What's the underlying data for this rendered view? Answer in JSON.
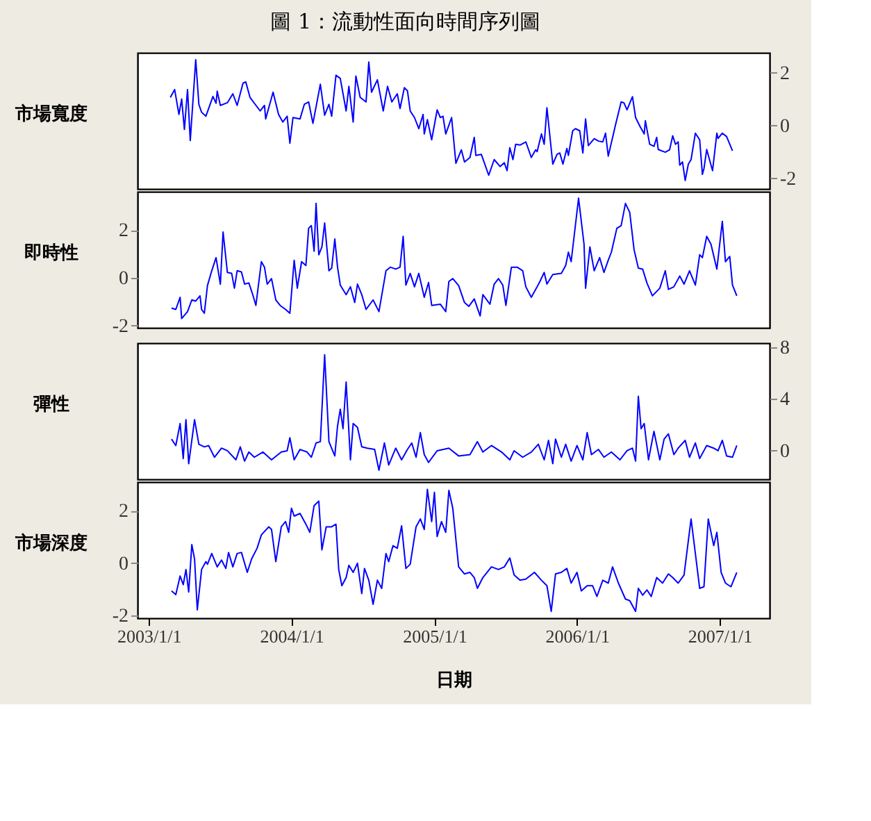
{
  "chart_data": [
    {
      "type": "line",
      "title": "圖 1：流動性面向時間序列圖",
      "ylabel": "市場寬度",
      "xlim": [
        "2002-12-03",
        "2007-05-09"
      ],
      "y2lim": [
        -2.4,
        2.75
      ],
      "y2ticks": [
        -2,
        0,
        2
      ],
      "tick_labels": "y",
      "series": [
        {
          "axis": "y2",
          "color": "#0000ff",
          "x": [
            "2003-02-25",
            "2003-03-08",
            "2003-03-19",
            "2003-03-26",
            "2003-04-02",
            "2003-04-10",
            "2003-04-17",
            "2003-05-01",
            "2003-05-09",
            "2003-05-16",
            "2003-05-27",
            "2003-06-14",
            "2003-06-22",
            "2003-06-25",
            "2003-07-03",
            "2003-07-21",
            "2003-08-04",
            "2003-08-15",
            "2003-08-30",
            "2003-09-06",
            "2003-09-17",
            "2003-10-13",
            "2003-10-24",
            "2003-10-27",
            "2003-11-15",
            "2003-11-29",
            "2003-12-10",
            "2003-12-21",
            "2003-12-28",
            "2004-01-05",
            "2004-01-23",
            "2004-02-03",
            "2004-02-14",
            "2004-02-25",
            "2004-03-15",
            "2004-03-26",
            "2004-04-06",
            "2004-04-13",
            "2004-04-24",
            "2004-05-05",
            "2004-05-20",
            "2004-05-27",
            "2004-06-07",
            "2004-06-14",
            "2004-06-25",
            "2004-07-10",
            "2004-07-17",
            "2004-07-24",
            "2004-08-08",
            "2004-08-23",
            "2004-09-03",
            "2004-09-14",
            "2004-09-28",
            "2004-10-05",
            "2004-10-16",
            "2004-10-24",
            "2004-10-31",
            "2004-11-11",
            "2004-11-22",
            "2004-12-03",
            "2004-12-06",
            "2004-12-14",
            "2004-12-25",
            "2005-01-08",
            "2005-01-16",
            "2005-01-23",
            "2005-01-30",
            "2005-02-14",
            "2005-02-25",
            "2005-03-11",
            "2005-03-19",
            "2005-04-02",
            "2005-04-13",
            "2005-04-17",
            "2005-05-01",
            "2005-05-20",
            "2005-06-03",
            "2005-06-18",
            "2005-06-29",
            "2005-07-06",
            "2005-07-13",
            "2005-07-21",
            "2005-07-28",
            "2005-08-08",
            "2005-08-23",
            "2005-09-06",
            "2005-09-17",
            "2005-09-21",
            "2005-10-02",
            "2005-10-09",
            "2005-10-16",
            "2005-10-31",
            "2005-11-11",
            "2005-11-18",
            "2005-11-26",
            "2005-12-06",
            "2005-12-10",
            "2005-12-21",
            "2005-12-28",
            "2006-01-08",
            "2006-01-16",
            "2006-01-23",
            "2006-01-30",
            "2006-02-14",
            "2006-02-25",
            "2006-03-08",
            "2006-03-15",
            "2006-03-22",
            "2006-04-10",
            "2006-04-24",
            "2006-05-01",
            "2006-05-09",
            "2006-05-23",
            "2006-05-31",
            "2006-06-11",
            "2006-06-22",
            "2006-06-25",
            "2006-07-06",
            "2006-07-17",
            "2006-07-24",
            "2006-07-28",
            "2006-08-15",
            "2006-08-26",
            "2006-09-03",
            "2006-09-10",
            "2006-09-17",
            "2006-09-21",
            "2006-09-28",
            "2006-10-05",
            "2006-10-13",
            "2006-10-20",
            "2006-10-31",
            "2006-11-11",
            "2006-11-18",
            "2006-11-22",
            "2006-11-29",
            "2006-12-14",
            "2006-12-25",
            "2006-12-28",
            "2007-01-08",
            "2007-01-19",
            "2007-02-03"
          ],
          "values": [
            1.06,
            1.36,
            0.42,
            1.0,
            -0.15,
            1.36,
            -0.57,
            2.49,
            0.8,
            0.5,
            0.35,
            1.1,
            0.84,
            1.3,
            0.76,
            0.86,
            1.2,
            0.76,
            1.6,
            1.65,
            1.06,
            0.55,
            0.76,
            0.25,
            1.26,
            0.42,
            0.13,
            0.35,
            -0.67,
            0.3,
            0.25,
            0.8,
            0.89,
            0.08,
            1.56,
            0.39,
            0.8,
            0.35,
            1.9,
            1.78,
            0.55,
            1.48,
            0.13,
            1.87,
            1.06,
            0.89,
            2.4,
            1.26,
            1.73,
            0.55,
            1.48,
            0.89,
            1.2,
            0.64,
            1.43,
            1.31,
            0.55,
            0.3,
            -0.12,
            0.42,
            -0.32,
            0.22,
            -0.54,
            0.59,
            0.3,
            0.35,
            -0.32,
            0.3,
            -1.43,
            -0.92,
            -1.38,
            -1.21,
            -0.45,
            -1.13,
            -1.09,
            -1.88,
            -1.29,
            -1.55,
            -1.41,
            -1.71,
            -0.84,
            -1.29,
            -0.71,
            -0.74,
            -0.62,
            -1.21,
            -0.92,
            -0.99,
            -0.32,
            -0.71,
            0.67,
            -1.46,
            -1.09,
            -1.04,
            -1.46,
            -0.87,
            -1.13,
            -0.2,
            -0.12,
            -0.2,
            -1.04,
            0.25,
            -0.76,
            -0.5,
            -0.59,
            -0.62,
            -0.29,
            -1.16,
            0.05,
            0.89,
            0.86,
            0.59,
            1.09,
            0.3,
            -0.03,
            -0.32,
            0.18,
            -0.71,
            -0.79,
            -0.45,
            -0.91,
            -1.01,
            -0.92,
            -0.39,
            -0.71,
            -0.62,
            -1.5,
            -1.38,
            -2.08,
            -1.46,
            -1.29,
            -0.29,
            -0.54,
            -1.85,
            -1.63,
            -0.91,
            -1.71,
            -0.29,
            -0.49,
            -0.29,
            -0.42,
            -0.96
          ]
        }
      ]
    },
    {
      "type": "line",
      "ylabel": "即時性",
      "xlim": [
        "2002-12-03",
        "2007-05-09"
      ],
      "ylim": [
        -2.1,
        3.6
      ],
      "yticks": [
        -2,
        0,
        2
      ],
      "tick_labels": "y",
      "series": [
        {
          "color": "#0000ff",
          "x": [
            "2003-02-28",
            "2003-03-11",
            "2003-03-22",
            "2003-03-26",
            "2003-04-10",
            "2003-04-21",
            "2003-05-01",
            "2003-05-12",
            "2003-05-16",
            "2003-05-23",
            "2003-05-31",
            "2003-06-11",
            "2003-06-22",
            "2003-07-03",
            "2003-07-10",
            "2003-07-21",
            "2003-08-01",
            "2003-08-08",
            "2003-08-15",
            "2003-08-26",
            "2003-09-03",
            "2003-09-14",
            "2003-09-24",
            "2003-10-02",
            "2003-10-16",
            "2003-10-24",
            "2003-10-31",
            "2003-11-11",
            "2003-11-22",
            "2003-12-03",
            "2003-12-17",
            "2003-12-28",
            "2004-01-08",
            "2004-01-16",
            "2004-01-27",
            "2004-02-07",
            "2004-02-14",
            "2004-02-21",
            "2004-02-28",
            "2004-03-04",
            "2004-03-11",
            "2004-03-19",
            "2004-03-26",
            "2004-04-06",
            "2004-04-13",
            "2004-04-21",
            "2004-04-28",
            "2004-05-05",
            "2004-05-20",
            "2004-05-31",
            "2004-06-11",
            "2004-06-18",
            "2004-06-29",
            "2004-07-10",
            "2004-07-28",
            "2004-08-12",
            "2004-08-30",
            "2004-09-10",
            "2004-09-24",
            "2004-10-05",
            "2004-10-13",
            "2004-10-20",
            "2004-10-31",
            "2004-11-11",
            "2004-11-22",
            "2004-12-06",
            "2004-12-17",
            "2004-12-25",
            "2005-01-16",
            "2005-01-30",
            "2005-02-07",
            "2005-02-17",
            "2005-03-04",
            "2005-03-19",
            "2005-03-30",
            "2005-04-13",
            "2005-04-28",
            "2005-05-05",
            "2005-05-23",
            "2005-06-03",
            "2005-06-14",
            "2005-06-25",
            "2005-07-03",
            "2005-07-17",
            "2005-08-01",
            "2005-08-15",
            "2005-08-23",
            "2005-09-06",
            "2005-09-21",
            "2005-09-28",
            "2005-10-09",
            "2005-10-16",
            "2005-10-31",
            "2005-11-22",
            "2005-12-03",
            "2005-12-10",
            "2005-12-17",
            "2006-01-05",
            "2006-01-19",
            "2006-01-23",
            "2006-02-03",
            "2006-02-14",
            "2006-02-28",
            "2006-03-11",
            "2006-03-22",
            "2006-03-30",
            "2006-04-13",
            "2006-04-24",
            "2006-05-05",
            "2006-05-16",
            "2006-05-27",
            "2006-06-07",
            "2006-06-18",
            "2006-06-29",
            "2006-07-13",
            "2006-08-01",
            "2006-08-15",
            "2006-08-23",
            "2006-09-06",
            "2006-09-21",
            "2006-10-02",
            "2006-10-16",
            "2006-10-31",
            "2006-11-11",
            "2006-11-18",
            "2006-11-29",
            "2006-12-10",
            "2006-12-25",
            "2007-01-08",
            "2007-01-16",
            "2007-01-27",
            "2007-02-03",
            "2007-02-14"
          ],
          "values": [
            -1.27,
            -1.33,
            -0.82,
            -1.71,
            -1.42,
            -0.93,
            -0.98,
            -0.76,
            -1.33,
            -1.49,
            -0.33,
            0.29,
            0.84,
            -0.27,
            1.91,
            0.22,
            0.18,
            -0.44,
            0.29,
            0.24,
            -0.27,
            -0.22,
            -0.71,
            -1.16,
            0.67,
            0.44,
            -0.27,
            -0.04,
            -0.93,
            -1.16,
            -1.33,
            -1.49,
            0.73,
            -0.44,
            0.67,
            0.51,
            2.07,
            2.18,
            1.11,
            3.11,
            0.96,
            1.29,
            2.29,
            0.29,
            0.4,
            1.62,
            0.44,
            -0.31,
            -0.71,
            -0.38,
            -1.04,
            -0.27,
            -0.71,
            -1.33,
            -0.93,
            -1.42,
            0.29,
            0.44,
            0.36,
            0.44,
            1.73,
            -0.31,
            0.18,
            -0.38,
            0.18,
            -0.82,
            -0.2,
            -1.16,
            -1.11,
            -1.42,
            -0.16,
            -0.04,
            -0.33,
            -1.04,
            -1.2,
            -0.89,
            -1.6,
            -0.71,
            -1.11,
            -0.27,
            -0.04,
            -0.31,
            -1.16,
            0.44,
            0.44,
            0.29,
            -0.38,
            -0.82,
            -0.38,
            -0.16,
            0.22,
            -0.27,
            0.13,
            0.18,
            0.51,
            1.07,
            0.67,
            3.33,
            1.4,
            -0.44,
            1.29,
            0.29,
            0.84,
            0.22,
            0.73,
            1.07,
            2.07,
            2.18,
            3.11,
            2.73,
            1.18,
            0.4,
            0.36,
            -0.22,
            -0.76,
            -0.44,
            0.29,
            -0.49,
            -0.38,
            0.07,
            -0.27,
            0.29,
            -0.31,
            0.96,
            0.84,
            1.73,
            1.4,
            0.36,
            2.36,
            0.67,
            0.89,
            -0.31,
            -0.76
          ]
        }
      ]
    },
    {
      "type": "line",
      "ylabel": "彈性",
      "xlim": [
        "2002-12-03",
        "2007-05-09"
      ],
      "y2lim": [
        -2.2,
        8.3
      ],
      "y2ticks": [
        0,
        4,
        8
      ],
      "tick_labels": "y",
      "series": [
        {
          "axis": "y2",
          "color": "#0000ff",
          "x": [
            "2003-02-28",
            "2003-03-11",
            "2003-03-22",
            "2003-03-30",
            "2003-04-06",
            "2003-04-13",
            "2003-04-28",
            "2003-05-09",
            "2003-05-23",
            "2003-06-03",
            "2003-06-18",
            "2003-07-06",
            "2003-07-21",
            "2003-08-12",
            "2003-08-23",
            "2003-09-03",
            "2003-09-14",
            "2003-09-28",
            "2003-10-20",
            "2003-11-11",
            "2003-12-06",
            "2003-12-21",
            "2003-12-28",
            "2004-01-08",
            "2004-01-23",
            "2004-02-10",
            "2004-02-21",
            "2004-03-04",
            "2004-03-15",
            "2004-03-26",
            "2004-04-06",
            "2004-04-21",
            "2004-04-28",
            "2004-05-05",
            "2004-05-12",
            "2004-05-20",
            "2004-05-31",
            "2004-06-07",
            "2004-06-18",
            "2004-06-29",
            "2004-07-13",
            "2004-08-01",
            "2004-08-12",
            "2004-08-26",
            "2004-09-06",
            "2004-09-24",
            "2004-10-09",
            "2004-10-24",
            "2004-11-04",
            "2004-11-15",
            "2004-11-26",
            "2004-12-06",
            "2004-12-17",
            "2005-01-08",
            "2005-02-07",
            "2005-03-04",
            "2005-04-02",
            "2005-04-21",
            "2005-05-05",
            "2005-05-27",
            "2005-06-22",
            "2005-07-13",
            "2005-07-24",
            "2005-08-15",
            "2005-09-06",
            "2005-09-24",
            "2005-10-09",
            "2005-10-20",
            "2005-10-31",
            "2005-11-07",
            "2005-11-22",
            "2005-12-03",
            "2005-12-17",
            "2006-01-01",
            "2006-01-16",
            "2006-01-27",
            "2006-02-07",
            "2006-02-25",
            "2006-03-11",
            "2006-03-30",
            "2006-04-21",
            "2006-05-09",
            "2006-05-23",
            "2006-05-31",
            "2006-06-07",
            "2006-06-14",
            "2006-06-22",
            "2006-07-03",
            "2006-07-17",
            "2006-08-01",
            "2006-08-12",
            "2006-08-23",
            "2006-09-06",
            "2006-09-17",
            "2006-10-05",
            "2006-10-16",
            "2006-10-31",
            "2006-11-11",
            "2006-11-29",
            "2006-12-17",
            "2006-12-28",
            "2007-01-08",
            "2007-01-19",
            "2007-02-03",
            "2007-02-14"
          ],
          "values": [
            0.9,
            0.4,
            2.1,
            -0.6,
            2.4,
            -1.0,
            2.4,
            0.5,
            0.3,
            0.4,
            -0.5,
            0.2,
            0.0,
            -0.7,
            0.3,
            -0.8,
            -0.1,
            -0.5,
            -0.1,
            -0.7,
            -0.1,
            0.0,
            1.0,
            -0.7,
            0.1,
            -0.1,
            -0.5,
            0.6,
            0.7,
            7.4,
            0.7,
            -0.4,
            1.9,
            3.2,
            1.7,
            5.3,
            -0.7,
            2.1,
            1.8,
            0.3,
            0.2,
            0.1,
            -1.5,
            0.6,
            -1.1,
            0.2,
            -0.7,
            0.1,
            0.6,
            -0.5,
            1.4,
            -0.3,
            -0.9,
            0.0,
            0.2,
            -0.4,
            -0.3,
            0.7,
            -0.1,
            0.4,
            -0.1,
            -0.7,
            0.0,
            -0.5,
            -0.1,
            0.5,
            -0.7,
            0.8,
            -1.0,
            0.9,
            -0.5,
            0.5,
            -0.8,
            0.4,
            -0.7,
            1.4,
            -0.3,
            0.1,
            -0.5,
            -0.1,
            -0.7,
            0.0,
            0.2,
            -0.8,
            4.2,
            1.7,
            2.1,
            -0.7,
            1.5,
            -0.7,
            0.9,
            1.3,
            -0.3,
            0.2,
            0.8,
            -0.5,
            0.6,
            -0.6,
            0.4,
            0.2,
            0.0,
            0.8,
            -0.4,
            -0.5,
            0.4
          ]
        }
      ]
    },
    {
      "type": "line",
      "ylabel": "市場深度",
      "xlabel": "日期",
      "xlim": [
        "2002-12-03",
        "2007-05-09"
      ],
      "ylim": [
        -2.1,
        3.1
      ],
      "yticks": [
        -2,
        0,
        2
      ],
      "xticks": [
        {
          "value": "2003-01-01",
          "label": "2003/1/1"
        },
        {
          "value": "2004-01-01",
          "label": "2004/1/1"
        },
        {
          "value": "2005-01-01",
          "label": "2005/1/1"
        },
        {
          "value": "2006-01-01",
          "label": "2006/1/1"
        },
        {
          "value": "2007-01-01",
          "label": "2007/1/1"
        }
      ],
      "series": [
        {
          "color": "#0000ff",
          "x": [
            "2003-02-28",
            "2003-03-11",
            "2003-03-22",
            "2003-03-30",
            "2003-04-06",
            "2003-04-13",
            "2003-04-21",
            "2003-04-28",
            "2003-05-05",
            "2003-05-16",
            "2003-05-27",
            "2003-05-31",
            "2003-06-11",
            "2003-06-25",
            "2003-07-06",
            "2003-07-17",
            "2003-07-24",
            "2003-08-04",
            "2003-08-15",
            "2003-08-26",
            "2003-09-10",
            "2003-09-21",
            "2003-10-05",
            "2003-10-16",
            "2003-11-04",
            "2003-11-11",
            "2003-11-22",
            "2003-12-06",
            "2003-12-17",
            "2003-12-25",
            "2004-01-01",
            "2004-01-08",
            "2004-01-23",
            "2004-02-07",
            "2004-02-17",
            "2004-02-28",
            "2004-03-11",
            "2004-03-19",
            "2004-03-30",
            "2004-04-13",
            "2004-04-24",
            "2004-05-01",
            "2004-05-09",
            "2004-05-20",
            "2004-05-27",
            "2004-06-07",
            "2004-06-18",
            "2004-06-29",
            "2004-07-06",
            "2004-07-17",
            "2004-07-28",
            "2004-08-08",
            "2004-08-19",
            "2004-08-30",
            "2004-09-06",
            "2004-09-17",
            "2004-09-28",
            "2004-10-09",
            "2004-10-20",
            "2004-10-31",
            "2004-11-15",
            "2004-11-26",
            "2004-12-06",
            "2004-12-14",
            "2004-12-25",
            "2005-01-01",
            "2005-01-08",
            "2005-01-19",
            "2005-01-30",
            "2005-02-07",
            "2005-02-17",
            "2005-03-04",
            "2005-03-19",
            "2005-04-02",
            "2005-04-13",
            "2005-04-21",
            "2005-05-05",
            "2005-05-27",
            "2005-06-14",
            "2005-06-29",
            "2005-07-13",
            "2005-07-24",
            "2005-08-08",
            "2005-08-23",
            "2005-09-14",
            "2005-10-02",
            "2005-10-16",
            "2005-10-27",
            "2005-11-07",
            "2005-11-22",
            "2005-12-06",
            "2005-12-17",
            "2006-01-01",
            "2006-01-12",
            "2006-01-27",
            "2006-02-10",
            "2006-02-21",
            "2006-03-08",
            "2006-03-22",
            "2006-04-02",
            "2006-04-17",
            "2006-05-05",
            "2006-05-16",
            "2006-05-31",
            "2006-06-07",
            "2006-06-18",
            "2006-06-29",
            "2006-07-10",
            "2006-07-24",
            "2006-08-08",
            "2006-08-23",
            "2006-09-03",
            "2006-09-17",
            "2006-10-02",
            "2006-10-20",
            "2006-10-31",
            "2006-11-11",
            "2006-11-22",
            "2006-12-03",
            "2006-12-17",
            "2006-12-25",
            "2007-01-05",
            "2007-01-16",
            "2007-01-30",
            "2007-02-14"
          ],
          "values": [
            -1.06,
            -1.2,
            -0.49,
            -0.82,
            -0.24,
            -1.1,
            0.71,
            0.16,
            -1.78,
            -0.24,
            0.06,
            -0.04,
            0.37,
            -0.14,
            0.12,
            -0.2,
            0.41,
            -0.14,
            0.37,
            0.41,
            -0.35,
            0.16,
            0.57,
            1.08,
            1.39,
            1.29,
            0.06,
            1.39,
            1.59,
            1.18,
            2.1,
            1.8,
            1.9,
            1.49,
            1.18,
            2.2,
            2.37,
            0.51,
            1.39,
            1.39,
            1.49,
            -0.24,
            -0.86,
            -0.55,
            -0.08,
            -0.35,
            0.0,
            -1.16,
            -0.2,
            -0.65,
            -1.57,
            -0.65,
            -0.96,
            0.37,
            0.06,
            0.67,
            0.57,
            1.43,
            -0.2,
            -0.04,
            1.39,
            1.69,
            1.29,
            2.82,
            1.59,
            2.71,
            1.02,
            1.59,
            1.18,
            2.78,
            2.1,
            -0.14,
            -0.41,
            -0.35,
            -0.55,
            -0.96,
            -0.55,
            -0.14,
            -0.24,
            -0.14,
            0.2,
            -0.45,
            -0.65,
            -0.61,
            -0.35,
            -0.65,
            -0.86,
            -1.84,
            -0.41,
            -0.35,
            -0.2,
            -0.76,
            -0.35,
            -1.06,
            -0.86,
            -0.86,
            -1.27,
            -0.65,
            -0.76,
            -0.14,
            -0.76,
            -1.37,
            -1.43,
            -1.84,
            -0.96,
            -1.22,
            -1.02,
            -1.27,
            -0.55,
            -0.76,
            -0.41,
            -0.55,
            -0.76,
            -0.45,
            1.69,
            0.37,
            -0.96,
            -0.9,
            1.69,
            0.67,
            1.18,
            -0.35,
            -0.76,
            -0.9,
            -0.35
          ]
        }
      ]
    }
  ]
}
